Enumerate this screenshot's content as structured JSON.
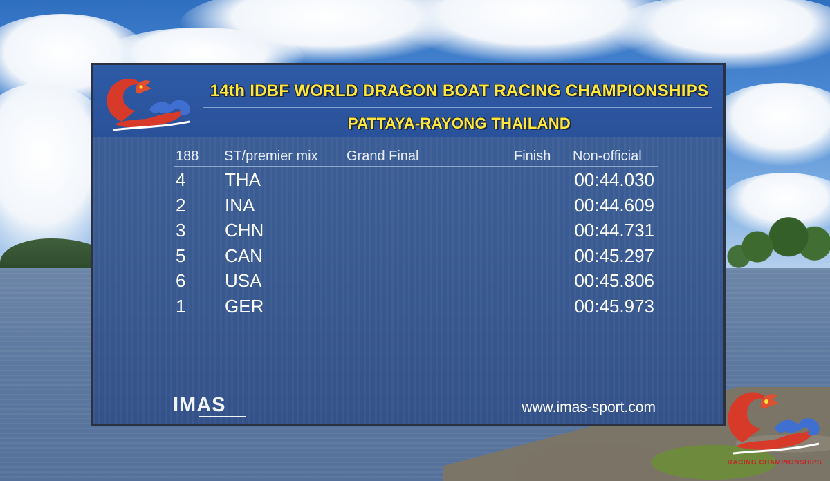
{
  "header": {
    "title": "14th IDBF WORLD DRAGON BOAT RACING CHAMPIONSHIPS",
    "location": "PATTAYA-RAYONG THAILAND"
  },
  "race": {
    "number": "188",
    "category": "ST/premier mix",
    "stage": "Grand Final",
    "status": "Finish",
    "official_state": "Non-official"
  },
  "results": [
    {
      "lane": "4",
      "team": "THA",
      "time": "00:44.030"
    },
    {
      "lane": "2",
      "team": "INA",
      "time": "00:44.609"
    },
    {
      "lane": "3",
      "team": "CHN",
      "time": "00:44.731"
    },
    {
      "lane": "5",
      "team": "CAN",
      "time": "00:45.297"
    },
    {
      "lane": "6",
      "team": "USA",
      "time": "00:45.806"
    },
    {
      "lane": "1",
      "team": "GER",
      "time": "00:45.973"
    }
  ],
  "footer": {
    "brand": "IMAS",
    "website": "www.imas-sport.com"
  },
  "corner_logo": {
    "icon": "dragon-logo-icon",
    "text": "RACING CHAMPIONSHIPS"
  },
  "colors": {
    "title_yellow": "#ffe63c",
    "board_blue": "#3a5b92",
    "header_blue": "#2a529a",
    "dragon_red": "#d83a2a",
    "wave_blue": "#3f6fd0"
  }
}
